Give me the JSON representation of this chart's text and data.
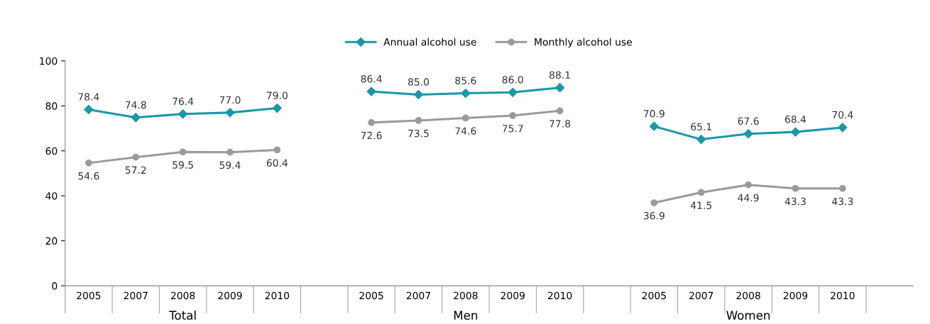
{
  "chart_data": {
    "type": "line",
    "categories": [
      "2005",
      "2007",
      "2008",
      "2009",
      "2010",
      null,
      "2005",
      "2007",
      "2008",
      "2009",
      "2010",
      null,
      "2005",
      "2007",
      "2008",
      "2009",
      "2010",
      null
    ],
    "series": [
      {
        "name": "Annual alcohol use",
        "color": "#1a98a6",
        "marker": "diamond",
        "values": [
          78.4,
          74.8,
          76.4,
          77.0,
          79.0,
          null,
          86.4,
          85.0,
          85.6,
          86.0,
          88.1,
          null,
          70.9,
          65.1,
          67.6,
          68.4,
          70.4,
          null
        ],
        "value_labels": [
          "78.4",
          "74.8",
          "76.4",
          "77.0",
          "79.0",
          null,
          "86.4",
          "85.0",
          "85.6",
          "86.0",
          "88.1",
          null,
          "70.9",
          "65.1",
          "67.6",
          "68.4",
          "70.4",
          null
        ]
      },
      {
        "name": "Monthly alcohol use",
        "color": "#9a9a9a",
        "marker": "circle",
        "values": [
          54.6,
          57.2,
          59.5,
          59.4,
          60.4,
          null,
          72.6,
          73.5,
          74.6,
          75.7,
          77.8,
          null,
          36.9,
          41.5,
          44.9,
          43.3,
          43.3,
          null
        ],
        "value_labels": [
          "54.6",
          "57.2",
          "59.5",
          "59.4",
          "60.4",
          null,
          "72.6",
          "73.5",
          "74.6",
          "75.7",
          "77.8",
          null,
          "36.9",
          "41.5",
          "44.9",
          "43.3",
          "43.3",
          null
        ]
      }
    ],
    "annotations": [
      "Total",
      "Men",
      "Women"
    ],
    "ylim": [
      0,
      100
    ],
    "yticks": [
      0,
      20,
      40,
      60,
      80,
      100
    ],
    "legend": "top",
    "grid": false,
    "line_style": "solid"
  }
}
